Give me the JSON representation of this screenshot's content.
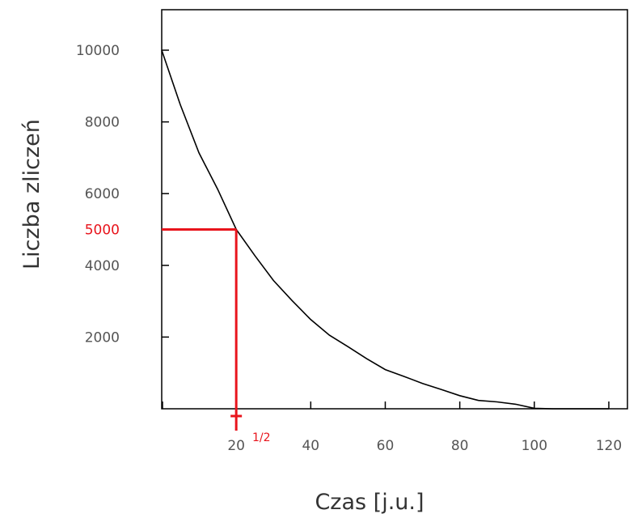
{
  "chart_data": {
    "type": "line",
    "xlabel": "Czas [j.u.]",
    "ylabel": "Liczba zliczeń",
    "xlim": [
      0,
      120
    ],
    "ylim": [
      0,
      10000
    ],
    "x_ticks": [
      20,
      40,
      60,
      80,
      100,
      120
    ],
    "x_tick_labels": [
      "20",
      "40",
      "60",
      "80",
      "100",
      "120"
    ],
    "y_ticks": [
      2000,
      4000,
      6000,
      8000,
      10000
    ],
    "y_tick_labels": [
      "2000",
      "4000",
      "6000",
      "8000",
      "10000"
    ],
    "grid": false,
    "series": [
      {
        "x": [
          0,
          5,
          10,
          15,
          20,
          25,
          30,
          35,
          40,
          45,
          50,
          55,
          60,
          65,
          70,
          75,
          80,
          85,
          90,
          95,
          100,
          105,
          110,
          115,
          120
        ],
        "y": [
          10000,
          8478,
          7135,
          6126,
          5000,
          4272,
          3579,
          3016,
          2488,
          2052,
          1731,
          1397,
          1092,
          904,
          707,
          540,
          366,
          233,
          191,
          127,
          14,
          0,
          0,
          0,
          0
        ]
      }
    ],
    "annotation": {
      "y_value": 5000,
      "y_label": "5000",
      "x_value": 20,
      "x_label_main": "T",
      "x_label_sub": "1/2",
      "color": "#e8141c"
    },
    "line_color": "#000000"
  }
}
